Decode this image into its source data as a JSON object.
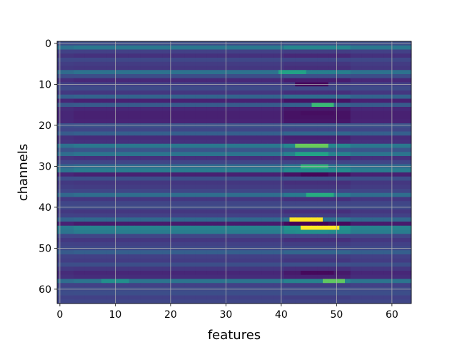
{
  "chart_data": {
    "type": "heatmap",
    "xlabel": "features",
    "ylabel": "channels",
    "x_ticks": [
      0,
      10,
      20,
      30,
      40,
      50,
      60
    ],
    "y_ticks": [
      0,
      10,
      20,
      30,
      40,
      50,
      60
    ],
    "xlim": [
      -0.5,
      63.5
    ],
    "ylim": [
      63.5,
      -0.5
    ],
    "n_rows": 64,
    "n_cols": 64,
    "colormap": "viridis",
    "grid": true,
    "value_range": [
      0,
      1
    ],
    "row_base_values": [
      0.3,
      0.5,
      0.24,
      0.18,
      0.27,
      0.22,
      0.2,
      0.47,
      0.3,
      0.15,
      0.24,
      0.28,
      0.2,
      0.4,
      0.12,
      0.36,
      0.14,
      0.12,
      0.12,
      0.13,
      0.32,
      0.26,
      0.38,
      0.16,
      0.18,
      0.5,
      0.33,
      0.48,
      0.18,
      0.26,
      0.44,
      0.52,
      0.12,
      0.3,
      0.2,
      0.22,
      0.26,
      0.45,
      0.2,
      0.26,
      0.28,
      0.2,
      0.24,
      0.42,
      0.1,
      0.55,
      0.52,
      0.26,
      0.2,
      0.24,
      0.28,
      0.38,
      0.24,
      0.22,
      0.3,
      0.2,
      0.14,
      0.16,
      0.48,
      0.24,
      0.28,
      0.3,
      0.24,
      0.26
    ],
    "hotspots": [
      {
        "row": 7,
        "col_start": 40,
        "col_end": 44,
        "value": 0.72
      },
      {
        "row": 10,
        "col_start": 43,
        "col_end": 48,
        "value": 0.03
      },
      {
        "row": 15,
        "col_start": 46,
        "col_end": 49,
        "value": 0.8
      },
      {
        "row": 17,
        "col_start": 44,
        "col_end": 49,
        "value": 0.05
      },
      {
        "row": 25,
        "col_start": 43,
        "col_end": 48,
        "value": 0.86
      },
      {
        "row": 27,
        "col_start": 43,
        "col_end": 48,
        "value": 0.72
      },
      {
        "row": 30,
        "col_start": 44,
        "col_end": 48,
        "value": 0.78
      },
      {
        "row": 32,
        "col_start": 44,
        "col_end": 48,
        "value": 0.02
      },
      {
        "row": 37,
        "col_start": 45,
        "col_end": 49,
        "value": 0.76
      },
      {
        "row": 43,
        "col_start": 42,
        "col_end": 47,
        "value": 1.0
      },
      {
        "row": 44,
        "col_start": 42,
        "col_end": 48,
        "value": 0.0
      },
      {
        "row": 45,
        "col_start": 44,
        "col_end": 50,
        "value": 1.0
      },
      {
        "row": 46,
        "col_start": 43,
        "col_end": 48,
        "value": 0.62
      },
      {
        "row": 56,
        "col_start": 44,
        "col_end": 49,
        "value": 0.03
      },
      {
        "row": 58,
        "col_start": 48,
        "col_end": 51,
        "value": 0.85
      },
      {
        "row": 58,
        "col_start": 8,
        "col_end": 12,
        "value": 0.62
      }
    ]
  }
}
